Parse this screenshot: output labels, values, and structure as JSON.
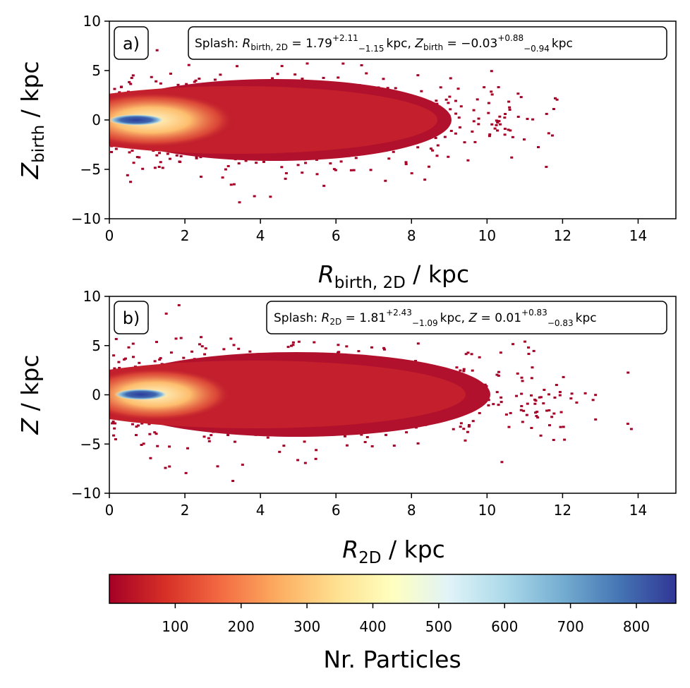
{
  "chart_data": [
    {
      "type": "heatmap",
      "panel_label": "a)",
      "annotation": {
        "prefix": "Splash: ",
        "r_symbol": "R",
        "r_sub": "birth, 2D",
        "r_value": "1.79",
        "r_plus": "+2.11",
        "r_minus": "−1.15",
        "z_symbol": "Z",
        "z_sub": "birth",
        "z_value": "−0.03",
        "z_plus": "+0.88",
        "z_minus": "−0.94",
        "unit": "kpc"
      },
      "xlabel": {
        "symbol": "R",
        "sub": "birth, 2D",
        "unit": " / kpc"
      },
      "ylabel": {
        "symbol": "Z",
        "sub": "birth",
        "unit": " / kpc"
      },
      "xlim": [
        0,
        15
      ],
      "ylim": [
        -10,
        10
      ],
      "xticks": [
        "0",
        "2",
        "4",
        "6",
        "8",
        "10",
        "12",
        "14"
      ],
      "yticks": [
        "−10",
        "−5",
        "0",
        "5",
        "10"
      ],
      "median_R_kpc": 1.79,
      "median_Z_kpc": -0.03,
      "peak_R_kpc": 0.7,
      "peak_Z_kpc": 0.0,
      "peak_count": 860
    },
    {
      "type": "heatmap",
      "panel_label": "b)",
      "annotation": {
        "prefix": "Splash: ",
        "r_symbol": "R",
        "r_sub": "2D",
        "r_value": "1.81",
        "r_plus": "+2.43",
        "r_minus": "−1.09",
        "z_symbol": "Z",
        "z_sub": "",
        "z_value": "0.01",
        "z_plus": "+0.83",
        "z_minus": "−0.83",
        "unit": "kpc"
      },
      "xlabel": {
        "symbol": "R",
        "sub": "2D",
        "unit": " / kpc"
      },
      "ylabel": {
        "symbol": "Z",
        "sub": "",
        "unit": " / kpc"
      },
      "xlim": [
        0,
        15
      ],
      "ylim": [
        -10,
        10
      ],
      "xticks": [
        "0",
        "2",
        "4",
        "6",
        "8",
        "10",
        "12",
        "14"
      ],
      "yticks": [
        "−10",
        "−5",
        "0",
        "5",
        "10"
      ],
      "median_R_kpc": 1.81,
      "median_Z_kpc": 0.01,
      "peak_R_kpc": 0.8,
      "peak_Z_kpc": 0.0,
      "peak_count": 860
    }
  ],
  "colorbar": {
    "label": "Nr. Particles",
    "colormap": "RdYlBu",
    "range": [
      0,
      860
    ],
    "ticks": [
      "100",
      "200",
      "300",
      "400",
      "500",
      "600",
      "700",
      "800"
    ],
    "tick_values": [
      100,
      200,
      300,
      400,
      500,
      600,
      700,
      800
    ],
    "colors": [
      "#a50026",
      "#d73027",
      "#f46d43",
      "#fdae61",
      "#fee090",
      "#ffffbf",
      "#e0f3f8",
      "#abd9e9",
      "#74add1",
      "#4575b4",
      "#313695"
    ]
  }
}
